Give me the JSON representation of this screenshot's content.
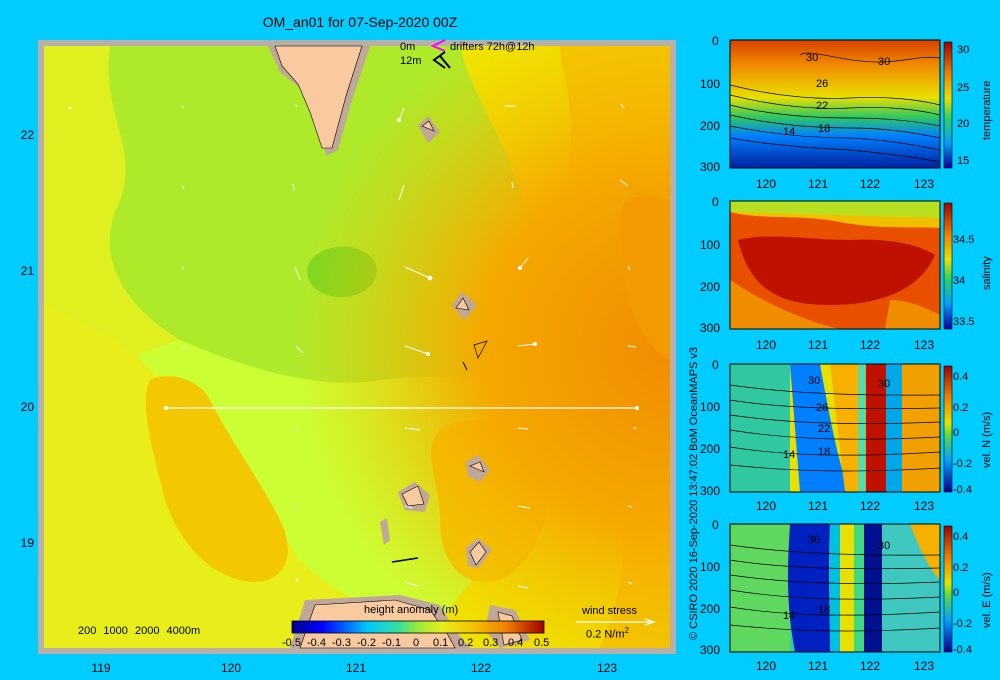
{
  "map": {
    "title": "OM_an01 for 07-Sep-2020 00Z",
    "x_ticks": [
      "119",
      "120",
      "121",
      "122",
      "123"
    ],
    "y_ticks": [
      "22",
      "21",
      "20",
      "19"
    ],
    "drifter_legend": {
      "depth_0": "0m",
      "depth_12": "12m",
      "label": "drifters 72h@12h"
    },
    "depth_legend": [
      "200",
      "1000",
      "2000",
      "4000m"
    ],
    "colorbar": {
      "label": "height anomaly (m)",
      "ticks": [
        "-0.5",
        "-0.4",
        "-0.3",
        "-0.2",
        "-0.1",
        "0",
        "0.1",
        "0.2",
        "0.3",
        "0.4",
        "0.5"
      ],
      "range": [
        -0.5,
        0.5
      ]
    },
    "wind": {
      "label": "wind stress",
      "scale_label": "0.2 N/m",
      "scale_sup": "2"
    }
  },
  "sections": [
    {
      "y_ticks": [
        "0",
        "100",
        "200",
        "300"
      ],
      "x_ticks": [
        "120",
        "121",
        "122",
        "123"
      ],
      "cb_ticks": [
        "30",
        "25",
        "20",
        "15"
      ],
      "cb_label": "temperature",
      "contour_labels": [
        "30",
        "30",
        "26",
        "22",
        "18",
        "14"
      ]
    },
    {
      "y_ticks": [
        "0",
        "100",
        "200",
        "300"
      ],
      "x_ticks": [
        "120",
        "121",
        "122",
        "123"
      ],
      "cb_ticks": [
        "34.5",
        "34",
        "33.5"
      ],
      "cb_label": "salinity"
    },
    {
      "y_ticks": [
        "0",
        "100",
        "200",
        "300"
      ],
      "x_ticks": [
        "120",
        "121",
        "122",
        "123"
      ],
      "cb_ticks": [
        "0.4",
        "0.2",
        "0",
        "-0.2",
        "-0.4"
      ],
      "cb_label": "vel. N (m/s)",
      "contour_labels": [
        "30",
        "30",
        "26",
        "22",
        "18",
        "14"
      ]
    },
    {
      "y_ticks": [
        "0",
        "100",
        "200",
        "300"
      ],
      "x_ticks": [
        "120",
        "121",
        "122",
        "123"
      ],
      "cb_ticks": [
        "0.4",
        "0.2",
        "0",
        "-0.2",
        "-0.4"
      ],
      "cb_label": "vel. E (m/s)",
      "contour_labels": [
        "30",
        "30",
        "18",
        "14"
      ]
    }
  ],
  "credit": "© CSIRO 2020  16-Sep-2020 13:47:02 BoM OceanMAPS v3",
  "colors": {
    "background": "#00ccff",
    "land": "#f9c9a0",
    "shelf": "#c0a898"
  }
}
